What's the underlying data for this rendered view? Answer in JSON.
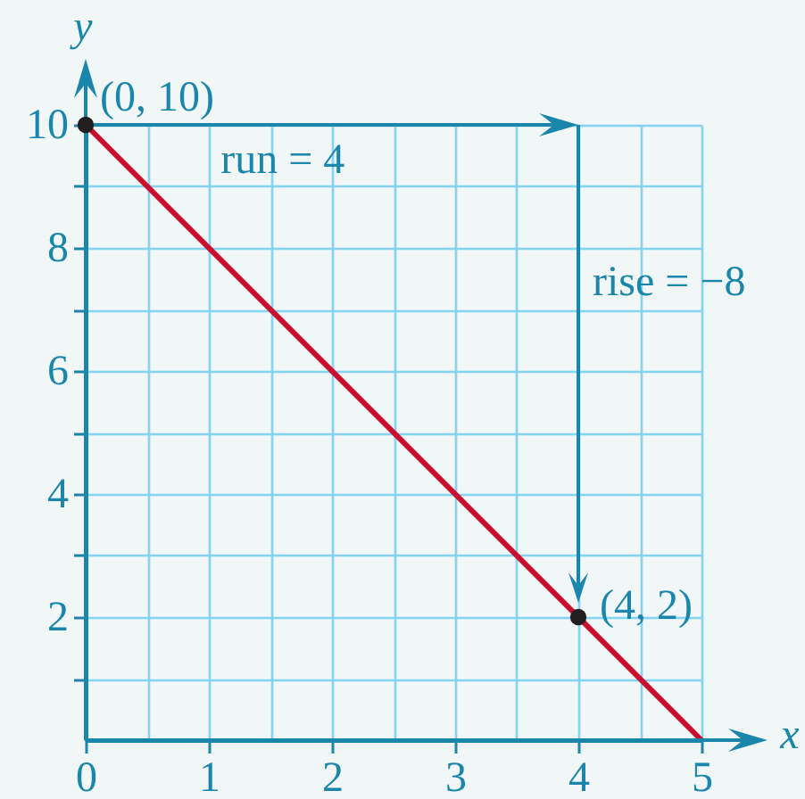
{
  "chart_data": {
    "type": "line",
    "xlabel": "x",
    "ylabel": "y",
    "series": [
      {
        "color": "#c8102e",
        "x": [
          0,
          5
        ],
        "values": [
          10,
          0
        ],
        "marker": "none"
      },
      {
        "type": "scatter",
        "color": "#231f20",
        "x": [
          0,
          4
        ],
        "values": [
          10,
          2
        ],
        "marker": "circle"
      }
    ],
    "xlim": [
      0,
      5
    ],
    "ylim": [
      0,
      10
    ],
    "xticks": [
      0,
      {
        "value": 0.5,
        "label": null
      },
      1,
      {
        "value": 1.5,
        "label": null
      },
      2,
      {
        "value": 2.5,
        "label": null
      },
      3,
      {
        "value": 3.5,
        "label": null
      },
      4,
      {
        "value": 4.5,
        "label": null
      },
      5
    ],
    "yticks": [
      {
        "value": 1,
        "label": null
      },
      2,
      {
        "value": 3,
        "label": null
      },
      4,
      {
        "value": 5,
        "label": null
      },
      6,
      {
        "value": 7,
        "label": null
      },
      8,
      {
        "value": 9,
        "label": null
      },
      10
    ],
    "grid": true,
    "annotations": [
      {
        "text": "(0, 10)",
        "x": 0,
        "y": 10
      },
      "run = 4",
      "rise = −8",
      {
        "text": "(4, 2)",
        "x": 4,
        "y": 2
      }
    ]
  }
}
